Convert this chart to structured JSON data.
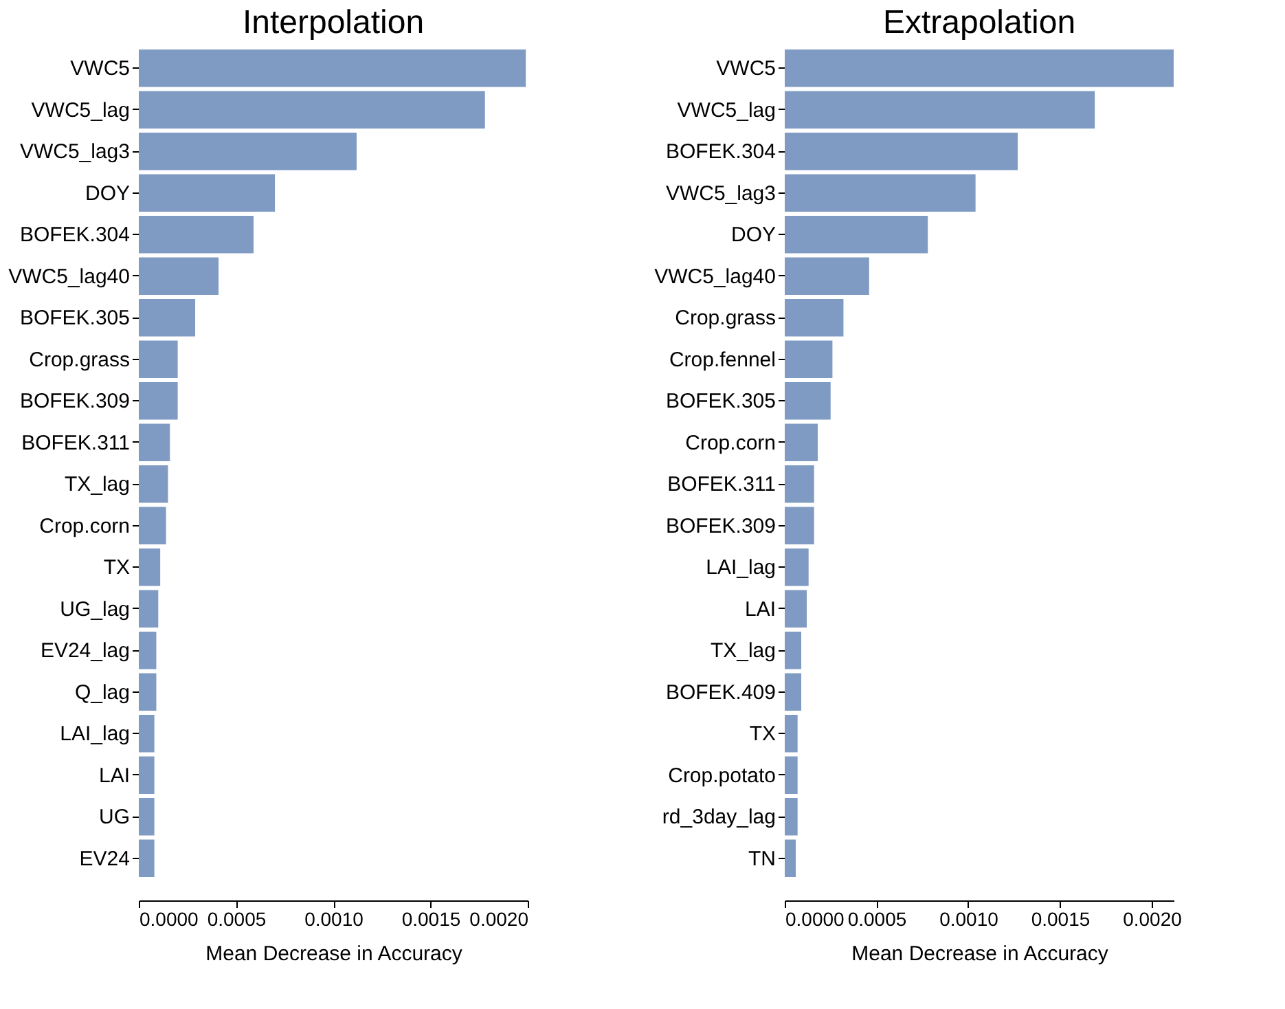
{
  "chart_data": [
    {
      "type": "bar",
      "orientation": "horizontal",
      "title": "Interpolation",
      "xlabel": "Mean Decrease in Accuracy",
      "color": "#7f9bc4",
      "grid": false,
      "categories": [
        "VWC5",
        "VWC5_lag",
        "VWC5_lag3",
        "DOY",
        "BOFEK.304",
        "VWC5_lag40",
        "BOFEK.305",
        "Crop.grass",
        "BOFEK.309",
        "BOFEK.311",
        "TX_lag",
        "Crop.corn",
        "TX",
        "UG_lag",
        "EV24_lag",
        "Q_lag",
        "LAI_lag",
        "LAI",
        "UG",
        "EV24"
      ],
      "values": [
        0.00199,
        0.00178,
        0.00112,
        0.0007,
        0.00059,
        0.00041,
        0.00029,
        0.0002,
        0.0002,
        0.00016,
        0.00015,
        0.00014,
        0.00011,
        0.0001,
        9e-05,
        9e-05,
        8e-05,
        8e-05,
        8e-05,
        8e-05
      ],
      "xlim": [
        0,
        0.002
      ],
      "xticks": [
        {
          "value": 0,
          "label": "0.0000"
        },
        {
          "value": 0.0005,
          "label": "0.0005"
        },
        {
          "value": 0.001,
          "label": "0.0010"
        },
        {
          "value": 0.0015,
          "label": "0.0015"
        },
        {
          "value": 0.002,
          "label": "0.0020"
        }
      ]
    },
    {
      "type": "bar",
      "orientation": "horizontal",
      "title": "Extrapolation",
      "xlabel": "Mean Decrease in Accuracy",
      "color": "#7f9bc4",
      "grid": false,
      "categories": [
        "VWC5",
        "VWC5_lag",
        "BOFEK.304",
        "VWC5_lag3",
        "DOY",
        "VWC5_lag40",
        "Crop.grass",
        "Crop.fennel",
        "BOFEK.305",
        "Crop.corn",
        "BOFEK.311",
        "BOFEK.309",
        "LAI_lag",
        "LAI",
        "TX_lag",
        "BOFEK.409",
        "TX",
        "Crop.potato",
        "rd_3day_lag",
        "TN"
      ],
      "values": [
        0.00212,
        0.00169,
        0.00127,
        0.00104,
        0.00078,
        0.00046,
        0.00032,
        0.00026,
        0.00025,
        0.00018,
        0.00016,
        0.00016,
        0.00013,
        0.00012,
        9e-05,
        9e-05,
        7e-05,
        7e-05,
        7e-05,
        6e-05
      ],
      "xlim": [
        0,
        0.00212
      ],
      "xticks": [
        {
          "value": 0,
          "label": "0.0000"
        },
        {
          "value": 0.0005,
          "label": "0.0005"
        },
        {
          "value": 0.001,
          "label": "0.0010"
        },
        {
          "value": 0.0015,
          "label": "0.0015"
        },
        {
          "value": 0.002,
          "label": "0.0020"
        }
      ]
    }
  ]
}
